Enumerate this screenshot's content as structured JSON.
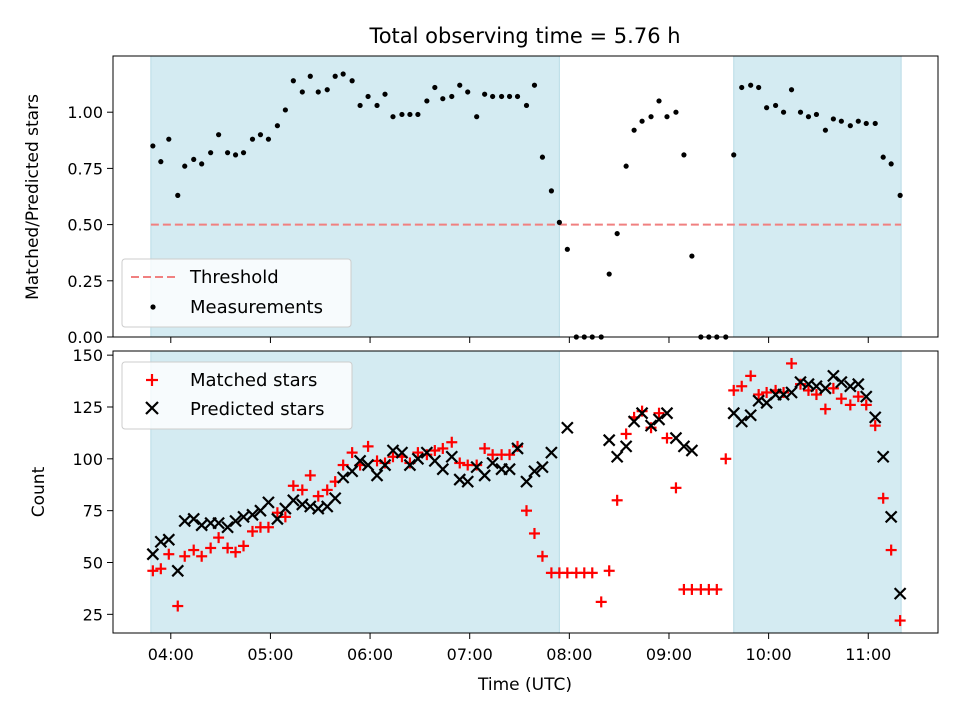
{
  "chart_data": {
    "title": "Total observing time = 5.76 h",
    "x_axis": {
      "label": "Time (UTC)",
      "range_hours": [
        3.42,
        11.7
      ],
      "ticks": [
        {
          "value": 4,
          "label": "04:00"
        },
        {
          "value": 5,
          "label": "05:00"
        },
        {
          "value": 6,
          "label": "06:00"
        },
        {
          "value": 7,
          "label": "07:00"
        },
        {
          "value": 8,
          "label": "08:00"
        },
        {
          "value": 9,
          "label": "09:00"
        },
        {
          "value": 10,
          "label": "10:00"
        },
        {
          "value": 11,
          "label": "11:00"
        }
      ]
    },
    "shaded_intervals_hours": [
      [
        3.8,
        7.9
      ],
      [
        9.65,
        11.33
      ]
    ],
    "shade_color": "#d4ebf2",
    "panels": [
      {
        "type": "scatter",
        "ylabel": "Matched/Predicted stars",
        "ylim": [
          0,
          1.25
        ],
        "yticks": [
          {
            "value": 0,
            "label": "0.00"
          },
          {
            "value": 0.25,
            "label": "0.25"
          },
          {
            "value": 0.5,
            "label": "0.50"
          },
          {
            "value": 0.75,
            "label": "0.75"
          },
          {
            "value": 1.0,
            "label": "1.00"
          }
        ],
        "threshold": {
          "value": 0.5,
          "color": "#f08080"
        },
        "legend": [
          {
            "label": "Threshold",
            "marker": "dashed-line",
            "color": "#f08080"
          },
          {
            "label": "Measurements",
            "marker": "dot",
            "color": "#000000"
          }
        ],
        "series": [
          {
            "marker": "dot",
            "color": "#000000",
            "x": [
              3.82,
              3.9,
              3.98,
              4.07,
              4.14,
              4.23,
              4.31,
              4.4,
              4.48,
              4.57,
              4.65,
              4.73,
              4.82,
              4.9,
              4.98,
              5.07,
              5.15,
              5.23,
              5.32,
              5.4,
              5.48,
              5.57,
              5.65,
              5.73,
              5.82,
              5.9,
              5.98,
              6.07,
              6.15,
              6.23,
              6.32,
              6.4,
              6.48,
              6.57,
              6.65,
              6.73,
              6.82,
              6.9,
              6.98,
              7.07,
              7.15,
              7.23,
              7.32,
              7.4,
              7.48,
              7.57,
              7.65,
              7.73,
              7.82,
              7.9,
              7.98,
              8.07,
              8.15,
              8.23,
              8.32,
              8.4,
              8.48,
              8.57,
              8.65,
              8.73,
              8.82,
              8.9,
              8.98,
              9.07,
              9.15,
              9.23,
              9.32,
              9.4,
              9.48,
              9.57,
              9.65,
              9.73,
              9.82,
              9.9,
              9.98,
              10.07,
              10.15,
              10.23,
              10.32,
              10.4,
              10.48,
              10.57,
              10.65,
              10.73,
              10.82,
              10.9,
              10.98,
              11.07,
              11.15,
              11.23,
              11.32
            ],
            "y": [
              0.85,
              0.78,
              0.88,
              0.63,
              0.76,
              0.79,
              0.77,
              0.82,
              0.9,
              0.82,
              0.81,
              0.82,
              0.88,
              0.9,
              0.88,
              0.94,
              1.01,
              1.14,
              1.09,
              1.16,
              1.09,
              1.1,
              1.16,
              1.17,
              1.14,
              1.03,
              1.07,
              1.03,
              1.08,
              0.98,
              0.99,
              0.99,
              0.99,
              1.05,
              1.11,
              1.06,
              1.07,
              1.12,
              1.09,
              0.98,
              1.08,
              1.07,
              1.07,
              1.07,
              1.07,
              1.03,
              1.12,
              0.8,
              0.65,
              0.51,
              0.39,
              0.0,
              0.0,
              0.0,
              0.0,
              0.28,
              0.46,
              0.76,
              0.92,
              0.96,
              0.98,
              1.05,
              0.98,
              1.0,
              0.81,
              0.36,
              0.0,
              0.0,
              0.0,
              0.0,
              0.81,
              1.11,
              1.12,
              1.11,
              1.02,
              1.03,
              1.0,
              1.1,
              1.0,
              0.98,
              0.99,
              0.92,
              0.97,
              0.96,
              0.94,
              0.96,
              0.95,
              0.95,
              0.8,
              0.77,
              0.63
            ]
          }
        ]
      },
      {
        "type": "scatter",
        "ylabel": "Count",
        "ylim": [
          16,
          152
        ],
        "yticks": [
          {
            "value": 25,
            "label": "25"
          },
          {
            "value": 50,
            "label": "50"
          },
          {
            "value": 75,
            "label": "75"
          },
          {
            "value": 100,
            "label": "100"
          },
          {
            "value": 125,
            "label": "125"
          },
          {
            "value": 150,
            "label": "150"
          }
        ],
        "legend": [
          {
            "label": "Matched stars",
            "marker": "plus",
            "color": "#ff0000"
          },
          {
            "label": "Predicted stars",
            "marker": "x",
            "color": "#000000"
          }
        ],
        "series": [
          {
            "name": "Matched stars",
            "marker": "plus",
            "color": "#ff0000",
            "x": [
              3.82,
              3.9,
              3.98,
              4.07,
              4.14,
              4.23,
              4.31,
              4.4,
              4.48,
              4.57,
              4.65,
              4.73,
              4.82,
              4.9,
              4.98,
              5.07,
              5.15,
              5.23,
              5.32,
              5.4,
              5.48,
              5.57,
              5.65,
              5.73,
              5.82,
              5.9,
              5.98,
              6.07,
              6.15,
              6.23,
              6.32,
              6.4,
              6.48,
              6.57,
              6.65,
              6.73,
              6.82,
              6.9,
              6.98,
              7.07,
              7.15,
              7.23,
              7.32,
              7.4,
              7.48,
              7.57,
              7.65,
              7.73,
              7.82,
              7.9,
              7.98,
              8.07,
              8.15,
              8.23,
              8.32,
              8.4,
              8.48,
              8.57,
              8.65,
              8.73,
              8.82,
              8.9,
              8.98,
              9.07,
              9.15,
              9.23,
              9.32,
              9.4,
              9.48,
              9.57,
              9.65,
              9.73,
              9.82,
              9.9,
              9.98,
              10.07,
              10.15,
              10.23,
              10.32,
              10.4,
              10.48,
              10.57,
              10.65,
              10.73,
              10.82,
              10.9,
              10.98,
              11.07,
              11.15,
              11.23,
              11.32
            ],
            "y": [
              46,
              47,
              54,
              29,
              53,
              56,
              53,
              57,
              62,
              57,
              55,
              58,
              65,
              67,
              67,
              74,
              72,
              87,
              85,
              92,
              82,
              85,
              89,
              97,
              103,
              97,
              106,
              99,
              98,
              101,
              101,
              98,
              103,
              102,
              104,
              105,
              108,
              98,
              97,
              97,
              105,
              102,
              102,
              102,
              106,
              75,
              64,
              53,
              45,
              45,
              45,
              45,
              45,
              45,
              31,
              46,
              80,
              112,
              120,
              123,
              115,
              122,
              110,
              86,
              37,
              37,
              37,
              37,
              37,
              100,
              133,
              135,
              140,
              131,
              132,
              133,
              132,
              146,
              136,
              133,
              131,
              124,
              134,
              129,
              126,
              130,
              126,
              116,
              81,
              56,
              22
            ]
          },
          {
            "name": "Predicted stars",
            "marker": "x",
            "color": "#000000",
            "x": [
              3.82,
              3.9,
              3.98,
              4.07,
              4.14,
              4.23,
              4.31,
              4.4,
              4.48,
              4.57,
              4.65,
              4.73,
              4.82,
              4.9,
              4.98,
              5.07,
              5.15,
              5.23,
              5.32,
              5.4,
              5.48,
              5.57,
              5.65,
              5.73,
              5.82,
              5.9,
              5.98,
              6.07,
              6.15,
              6.23,
              6.32,
              6.4,
              6.48,
              6.57,
              6.65,
              6.73,
              6.82,
              6.9,
              6.98,
              7.07,
              7.15,
              7.23,
              7.32,
              7.4,
              7.48,
              7.57,
              7.65,
              7.73,
              7.82,
              7.98,
              8.4,
              8.48,
              8.57,
              8.65,
              8.73,
              8.82,
              8.9,
              8.98,
              9.07,
              9.15,
              9.23,
              9.65,
              9.73,
              9.82,
              9.9,
              9.98,
              10.07,
              10.15,
              10.23,
              10.32,
              10.4,
              10.48,
              10.57,
              10.65,
              10.73,
              10.82,
              10.9,
              10.98,
              11.07,
              11.15,
              11.23,
              11.32
            ],
            "y": [
              54,
              60,
              61,
              46,
              70,
              71,
              68,
              69,
              69,
              67,
              70,
              72,
              73,
              75,
              79,
              71,
              76,
              80,
              78,
              77,
              76,
              77,
              81,
              91,
              94,
              99,
              97,
              92,
              97,
              104,
              103,
              97,
              100,
              103,
              99,
              95,
              101,
              90,
              89,
              96,
              92,
              98,
              95,
              95,
              105,
              89,
              94,
              96,
              103,
              115,
              109,
              101,
              106,
              118,
              122,
              116,
              119,
              122,
              110,
              106,
              104,
              122,
              118,
              121,
              128,
              127,
              131,
              131,
              132,
              137,
              136,
              135,
              134,
              140,
              137,
              135,
              136,
              130,
              120,
              101,
              72,
              35
            ]
          }
        ]
      }
    ]
  }
}
